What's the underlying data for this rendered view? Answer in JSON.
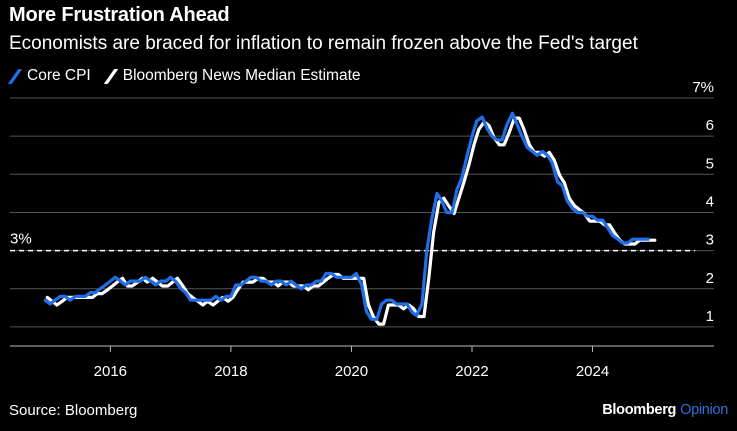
{
  "title": "More Frustration Ahead",
  "subtitle": "Economists are braced for inflation to remain frozen above the Fed's target",
  "source": "Source: Bloomberg",
  "brand": {
    "name": "Bloomberg",
    "suffix": "Opinion",
    "suffix_color": "#2f6fde"
  },
  "colors": {
    "core_cpi": "#1f6fea",
    "estimate": "#ffffff",
    "background": "#000000",
    "grid": "#555555"
  },
  "chart_data": {
    "type": "line",
    "title": "More Frustration Ahead",
    "subtitle": "Economists are braced for inflation to remain frozen above the Fed's target",
    "ylim": [
      0.5,
      7
    ],
    "y_ticks": [
      {
        "value": 1,
        "label": "1"
      },
      {
        "value": 2,
        "label": "2"
      },
      {
        "value": 3,
        "label": "3"
      },
      {
        "value": 4,
        "label": "4"
      },
      {
        "value": 5,
        "label": "5"
      },
      {
        "value": 6,
        "label": "6"
      },
      {
        "value": 7,
        "label": "7%"
      }
    ],
    "xlim": [
      2014.7,
      2025.7
    ],
    "x_ticks": [
      {
        "value": 2016,
        "label": "2016"
      },
      {
        "value": 2018,
        "label": "2018"
      },
      {
        "value": 2020,
        "label": "2020"
      },
      {
        "value": 2022,
        "label": "2022"
      },
      {
        "value": 2024,
        "label": "2024"
      }
    ],
    "reference_line": {
      "value": 3,
      "label": "3%",
      "style": "dashed"
    },
    "grid": true,
    "legend_position": "top-left",
    "series": [
      {
        "name": "Core CPI",
        "color": "#1f6fea",
        "points": [
          [
            2014.92,
            1.7
          ],
          [
            2015.0,
            1.6
          ],
          [
            2015.08,
            1.7
          ],
          [
            2015.17,
            1.8
          ],
          [
            2015.25,
            1.8
          ],
          [
            2015.33,
            1.7
          ],
          [
            2015.42,
            1.8
          ],
          [
            2015.5,
            1.8
          ],
          [
            2015.58,
            1.8
          ],
          [
            2015.67,
            1.9
          ],
          [
            2015.75,
            1.9
          ],
          [
            2015.83,
            2.0
          ],
          [
            2015.92,
            2.1
          ],
          [
            2016.0,
            2.2
          ],
          [
            2016.08,
            2.3
          ],
          [
            2016.17,
            2.2
          ],
          [
            2016.25,
            2.1
          ],
          [
            2016.33,
            2.2
          ],
          [
            2016.42,
            2.2
          ],
          [
            2016.5,
            2.2
          ],
          [
            2016.58,
            2.3
          ],
          [
            2016.67,
            2.2
          ],
          [
            2016.75,
            2.1
          ],
          [
            2016.83,
            2.2
          ],
          [
            2016.92,
            2.2
          ],
          [
            2017.0,
            2.3
          ],
          [
            2017.08,
            2.2
          ],
          [
            2017.17,
            2.0
          ],
          [
            2017.25,
            1.9
          ],
          [
            2017.33,
            1.7
          ],
          [
            2017.42,
            1.7
          ],
          [
            2017.5,
            1.7
          ],
          [
            2017.58,
            1.7
          ],
          [
            2017.67,
            1.7
          ],
          [
            2017.75,
            1.8
          ],
          [
            2017.83,
            1.7
          ],
          [
            2017.92,
            1.8
          ],
          [
            2018.0,
            1.8
          ],
          [
            2018.08,
            2.1
          ],
          [
            2018.17,
            2.1
          ],
          [
            2018.25,
            2.2
          ],
          [
            2018.33,
            2.3
          ],
          [
            2018.42,
            2.3
          ],
          [
            2018.5,
            2.2
          ],
          [
            2018.58,
            2.2
          ],
          [
            2018.67,
            2.1
          ],
          [
            2018.75,
            2.2
          ],
          [
            2018.83,
            2.2
          ],
          [
            2018.92,
            2.1
          ],
          [
            2019.0,
            2.2
          ],
          [
            2019.08,
            2.1
          ],
          [
            2019.17,
            2.0
          ],
          [
            2019.25,
            2.1
          ],
          [
            2019.33,
            2.1
          ],
          [
            2019.42,
            2.2
          ],
          [
            2019.5,
            2.2
          ],
          [
            2019.58,
            2.4
          ],
          [
            2019.67,
            2.4
          ],
          [
            2019.75,
            2.3
          ],
          [
            2019.83,
            2.3
          ],
          [
            2019.92,
            2.3
          ],
          [
            2020.0,
            2.3
          ],
          [
            2020.08,
            2.4
          ],
          [
            2020.17,
            2.1
          ],
          [
            2020.25,
            1.4
          ],
          [
            2020.33,
            1.2
          ],
          [
            2020.42,
            1.2
          ],
          [
            2020.5,
            1.6
          ],
          [
            2020.58,
            1.7
          ],
          [
            2020.67,
            1.7
          ],
          [
            2020.75,
            1.6
          ],
          [
            2020.83,
            1.6
          ],
          [
            2020.92,
            1.6
          ],
          [
            2021.0,
            1.4
          ],
          [
            2021.08,
            1.3
          ],
          [
            2021.17,
            1.6
          ],
          [
            2021.25,
            3.0
          ],
          [
            2021.33,
            3.8
          ],
          [
            2021.42,
            4.5
          ],
          [
            2021.5,
            4.3
          ],
          [
            2021.58,
            4.0
          ],
          [
            2021.67,
            4.0
          ],
          [
            2021.75,
            4.6
          ],
          [
            2021.83,
            4.9
          ],
          [
            2021.92,
            5.5
          ],
          [
            2022.0,
            6.0
          ],
          [
            2022.08,
            6.4
          ],
          [
            2022.17,
            6.5
          ],
          [
            2022.25,
            6.2
          ],
          [
            2022.33,
            6.0
          ],
          [
            2022.42,
            5.9
          ],
          [
            2022.5,
            5.9
          ],
          [
            2022.58,
            6.3
          ],
          [
            2022.67,
            6.6
          ],
          [
            2022.75,
            6.3
          ],
          [
            2022.83,
            6.0
          ],
          [
            2022.92,
            5.7
          ],
          [
            2023.0,
            5.6
          ],
          [
            2023.08,
            5.5
          ],
          [
            2023.17,
            5.6
          ],
          [
            2023.25,
            5.5
          ],
          [
            2023.33,
            5.3
          ],
          [
            2023.42,
            4.8
          ],
          [
            2023.5,
            4.7
          ],
          [
            2023.58,
            4.3
          ],
          [
            2023.67,
            4.1
          ],
          [
            2023.75,
            4.0
          ],
          [
            2023.83,
            4.0
          ],
          [
            2023.92,
            3.9
          ],
          [
            2024.0,
            3.9
          ],
          [
            2024.08,
            3.8
          ],
          [
            2024.17,
            3.8
          ],
          [
            2024.25,
            3.6
          ],
          [
            2024.33,
            3.4
          ],
          [
            2024.42,
            3.3
          ],
          [
            2024.5,
            3.2
          ],
          [
            2024.58,
            3.2
          ],
          [
            2024.67,
            3.3
          ],
          [
            2024.75,
            3.3
          ],
          [
            2024.83,
            3.3
          ],
          [
            2024.92,
            3.3
          ]
        ]
      },
      {
        "name": "Bloomberg News Median Estimate",
        "color": "#ffffff",
        "points": [
          [
            2014.92,
            1.8
          ],
          [
            2015.0,
            1.7
          ],
          [
            2015.08,
            1.6
          ],
          [
            2015.17,
            1.7
          ],
          [
            2015.25,
            1.8
          ],
          [
            2015.33,
            1.8
          ],
          [
            2015.42,
            1.8
          ],
          [
            2015.5,
            1.8
          ],
          [
            2015.58,
            1.8
          ],
          [
            2015.67,
            1.8
          ],
          [
            2015.75,
            1.9
          ],
          [
            2015.83,
            1.9
          ],
          [
            2015.92,
            2.0
          ],
          [
            2016.0,
            2.1
          ],
          [
            2016.08,
            2.2
          ],
          [
            2016.17,
            2.3
          ],
          [
            2016.25,
            2.1
          ],
          [
            2016.33,
            2.1
          ],
          [
            2016.42,
            2.2
          ],
          [
            2016.5,
            2.3
          ],
          [
            2016.58,
            2.2
          ],
          [
            2016.67,
            2.3
          ],
          [
            2016.75,
            2.2
          ],
          [
            2016.83,
            2.1
          ],
          [
            2016.92,
            2.1
          ],
          [
            2017.0,
            2.2
          ],
          [
            2017.08,
            2.3
          ],
          [
            2017.17,
            2.1
          ],
          [
            2017.25,
            1.9
          ],
          [
            2017.33,
            1.8
          ],
          [
            2017.42,
            1.7
          ],
          [
            2017.5,
            1.6
          ],
          [
            2017.58,
            1.7
          ],
          [
            2017.67,
            1.6
          ],
          [
            2017.75,
            1.7
          ],
          [
            2017.83,
            1.8
          ],
          [
            2017.92,
            1.7
          ],
          [
            2018.0,
            1.8
          ],
          [
            2018.08,
            2.0
          ],
          [
            2018.17,
            2.2
          ],
          [
            2018.25,
            2.2
          ],
          [
            2018.33,
            2.2
          ],
          [
            2018.42,
            2.3
          ],
          [
            2018.5,
            2.3
          ],
          [
            2018.58,
            2.2
          ],
          [
            2018.67,
            2.2
          ],
          [
            2018.75,
            2.1
          ],
          [
            2018.83,
            2.2
          ],
          [
            2018.92,
            2.2
          ],
          [
            2019.0,
            2.1
          ],
          [
            2019.08,
            2.1
          ],
          [
            2019.17,
            2.1
          ],
          [
            2019.25,
            2.0
          ],
          [
            2019.33,
            2.1
          ],
          [
            2019.42,
            2.1
          ],
          [
            2019.5,
            2.2
          ],
          [
            2019.58,
            2.3
          ],
          [
            2019.67,
            2.4
          ],
          [
            2019.75,
            2.4
          ],
          [
            2019.83,
            2.3
          ],
          [
            2019.92,
            2.3
          ],
          [
            2020.0,
            2.3
          ],
          [
            2020.08,
            2.3
          ],
          [
            2020.17,
            2.3
          ],
          [
            2020.25,
            1.6
          ],
          [
            2020.33,
            1.3
          ],
          [
            2020.42,
            1.1
          ],
          [
            2020.5,
            1.1
          ],
          [
            2020.58,
            1.6
          ],
          [
            2020.67,
            1.6
          ],
          [
            2020.75,
            1.6
          ],
          [
            2020.83,
            1.5
          ],
          [
            2020.92,
            1.6
          ],
          [
            2021.0,
            1.5
          ],
          [
            2021.08,
            1.3
          ],
          [
            2021.17,
            1.3
          ],
          [
            2021.25,
            2.3
          ],
          [
            2021.33,
            3.5
          ],
          [
            2021.42,
            4.3
          ],
          [
            2021.5,
            4.4
          ],
          [
            2021.58,
            4.2
          ],
          [
            2021.67,
            4.0
          ],
          [
            2021.75,
            4.4
          ],
          [
            2021.83,
            4.8
          ],
          [
            2021.92,
            5.3
          ],
          [
            2022.0,
            5.8
          ],
          [
            2022.08,
            6.2
          ],
          [
            2022.17,
            6.4
          ],
          [
            2022.25,
            6.3
          ],
          [
            2022.33,
            6.0
          ],
          [
            2022.42,
            5.8
          ],
          [
            2022.5,
            5.8
          ],
          [
            2022.58,
            6.1
          ],
          [
            2022.67,
            6.5
          ],
          [
            2022.75,
            6.5
          ],
          [
            2022.83,
            6.2
          ],
          [
            2022.92,
            5.8
          ],
          [
            2023.0,
            5.6
          ],
          [
            2023.08,
            5.6
          ],
          [
            2023.17,
            5.5
          ],
          [
            2023.25,
            5.6
          ],
          [
            2023.33,
            5.4
          ],
          [
            2023.42,
            5.0
          ],
          [
            2023.5,
            4.8
          ],
          [
            2023.58,
            4.4
          ],
          [
            2023.67,
            4.2
          ],
          [
            2023.75,
            4.1
          ],
          [
            2023.83,
            4.0
          ],
          [
            2023.92,
            3.8
          ],
          [
            2024.0,
            3.8
          ],
          [
            2024.08,
            3.8
          ],
          [
            2024.17,
            3.7
          ],
          [
            2024.25,
            3.7
          ],
          [
            2024.33,
            3.5
          ],
          [
            2024.42,
            3.3
          ],
          [
            2024.5,
            3.2
          ],
          [
            2024.58,
            3.2
          ],
          [
            2024.67,
            3.2
          ],
          [
            2024.75,
            3.3
          ],
          [
            2024.83,
            3.3
          ],
          [
            2024.92,
            3.3
          ],
          [
            2025.0,
            3.3
          ]
        ]
      }
    ]
  }
}
